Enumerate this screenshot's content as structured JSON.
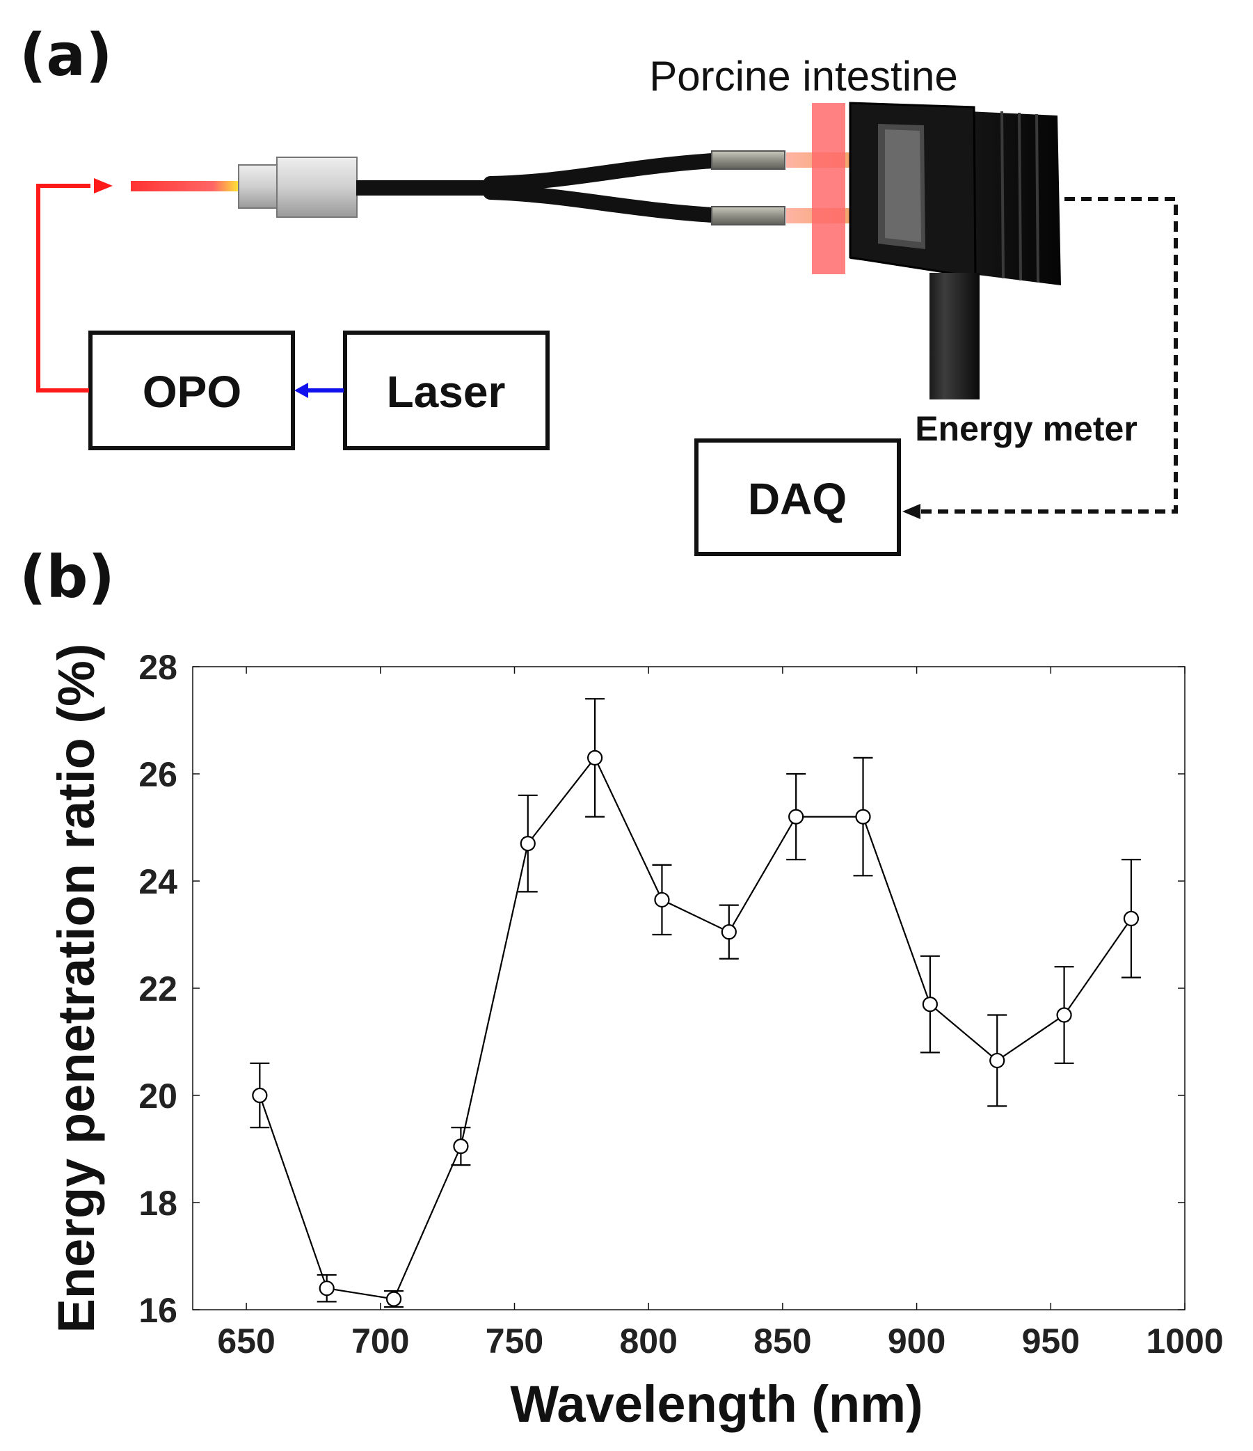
{
  "panel_a": {
    "label": "(a)",
    "porcine_label": "Porcine intestine",
    "energy_meter_label": "Energy meter",
    "opo_label": "OPO",
    "laser_label": "Laser",
    "daq_label": "DAQ",
    "colors": {
      "laser_beam": "#ff2222",
      "pump_arrow": "#1111ee",
      "fiber": "#111111",
      "tissue": "#ff6b6b"
    }
  },
  "panel_b": {
    "label": "(b)"
  },
  "chart_data": {
    "type": "line",
    "xlabel": "Wavelength (nm)",
    "ylabel": "Energy penetration ratio (%)",
    "xlim": [
      630,
      1000
    ],
    "ylim": [
      16,
      28
    ],
    "xticks": [
      650,
      700,
      750,
      800,
      850,
      900,
      950,
      1000
    ],
    "yticks": [
      16,
      18,
      20,
      22,
      24,
      26,
      28
    ],
    "grid": false,
    "series": [
      {
        "x": [
          655,
          680,
          705,
          730,
          755,
          780,
          805,
          830,
          855,
          880,
          905,
          930,
          955,
          980
        ],
        "y": [
          20.0,
          16.4,
          16.2,
          19.05,
          24.7,
          26.3,
          23.65,
          23.05,
          25.2,
          25.2,
          21.7,
          20.65,
          21.5,
          23.3
        ],
        "err": [
          0.6,
          0.25,
          0.15,
          0.35,
          0.9,
          1.1,
          0.65,
          0.5,
          0.8,
          1.1,
          0.9,
          0.85,
          0.9,
          1.1
        ]
      }
    ],
    "marker": "open-circle",
    "color": "#000000"
  }
}
